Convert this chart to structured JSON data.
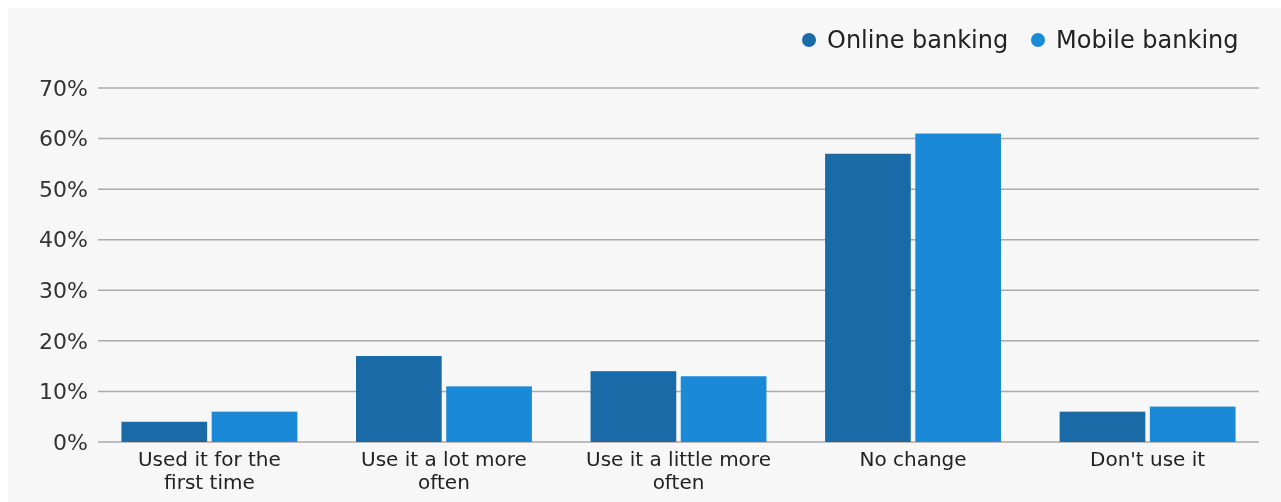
{
  "chart_data": {
    "type": "bar",
    "categories": [
      "Used it for the first time",
      "Use it a lot more often",
      "Use it a little more often",
      "No change",
      "Don't use it"
    ],
    "series": [
      {
        "name": "Online banking",
        "color": "#1a6aa8",
        "values": [
          4,
          17,
          14,
          57,
          6
        ]
      },
      {
        "name": "Mobile banking",
        "color": "#1a8ad8",
        "values": [
          6,
          11,
          13,
          61,
          7
        ]
      }
    ],
    "ylim": [
      0,
      70
    ],
    "yticks": [
      {
        "value": 0,
        "label": "0%"
      },
      {
        "value": 10,
        "label": "10%"
      },
      {
        "value": 20,
        "label": "20%"
      },
      {
        "value": 30,
        "label": "30%"
      },
      {
        "value": 40,
        "label": "40%"
      },
      {
        "value": 50,
        "label": "50%"
      },
      {
        "value": 60,
        "label": "60%"
      },
      {
        "value": 70,
        "label": "70%"
      }
    ],
    "grid": "y",
    "legend": "top right"
  }
}
